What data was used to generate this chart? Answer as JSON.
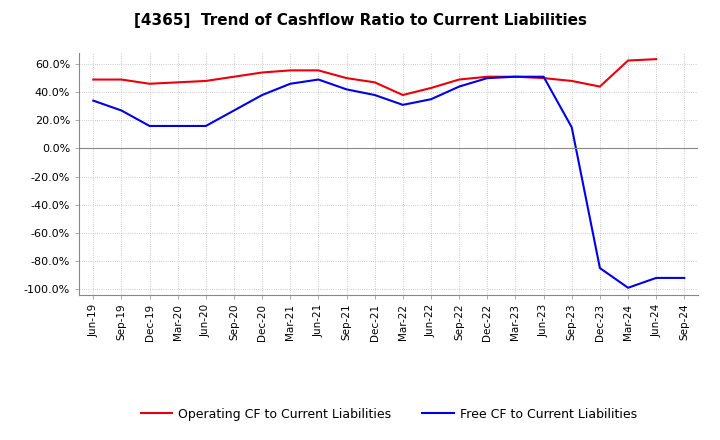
{
  "title": "[4365]  Trend of Cashflow Ratio to Current Liabilities",
  "x_labels": [
    "Jun-19",
    "Sep-19",
    "Dec-19",
    "Mar-20",
    "Jun-20",
    "Sep-20",
    "Dec-20",
    "Mar-21",
    "Jun-21",
    "Sep-21",
    "Dec-21",
    "Mar-22",
    "Jun-22",
    "Sep-22",
    "Dec-22",
    "Mar-23",
    "Jun-23",
    "Sep-23",
    "Dec-23",
    "Mar-24",
    "Jun-24",
    "Sep-24"
  ],
  "operating_cf": [
    49.0,
    49.0,
    46.0,
    47.0,
    48.0,
    51.0,
    54.0,
    55.5,
    55.5,
    50.0,
    47.0,
    38.0,
    43.0,
    49.0,
    51.0,
    51.0,
    50.0,
    48.0,
    44.0,
    62.5,
    63.5,
    null
  ],
  "free_cf": [
    34.0,
    27.0,
    16.0,
    16.0,
    16.0,
    27.0,
    38.0,
    46.0,
    49.0,
    42.0,
    38.0,
    31.0,
    35.0,
    44.0,
    50.0,
    51.0,
    51.0,
    15.0,
    -85.0,
    -99.0,
    -92.0,
    -92.0
  ],
  "operating_color": "#e8000a",
  "free_color": "#0000e8",
  "ylim": [
    -104,
    68
  ],
  "yticks": [
    -100,
    -80,
    -60,
    -40,
    -20,
    0,
    20,
    40,
    60
  ],
  "background_color": "#ffffff",
  "plot_bg_color": "#ffffff",
  "grid_color": "#bbbbbb",
  "legend_labels": [
    "Operating CF to Current Liabilities",
    "Free CF to Current Liabilities"
  ]
}
